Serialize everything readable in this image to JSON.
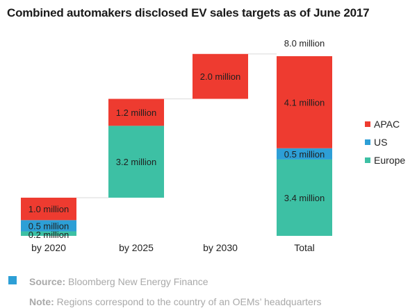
{
  "title": "Combined automakers disclosed EV sales targets as of June 2017",
  "colors": {
    "APAC": "#ee3b30",
    "US": "#2d9fd6",
    "Europe": "#3dc0a4",
    "connector": "#e0e0e0",
    "marker": "#2d9fd6"
  },
  "chart_data": {
    "type": "bar",
    "subtype": "waterfall",
    "unit": "million",
    "categories": [
      "by 2020",
      "by 2025",
      "by 2030",
      "Total"
    ],
    "series": [
      {
        "name": "Europe",
        "values": [
          0.2,
          3.2,
          0.0,
          3.4
        ]
      },
      {
        "name": "US",
        "values": [
          0.5,
          0.0,
          0.0,
          0.5
        ]
      },
      {
        "name": "APAC",
        "values": [
          1.0,
          1.2,
          2.0,
          4.1
        ]
      }
    ],
    "data_labels": [
      [
        "0.2 million",
        "3.2 million",
        "",
        "3.4 million"
      ],
      [
        "0.5 million",
        "",
        "",
        "0.5 million"
      ],
      [
        "1.0 million",
        "1.2 million",
        "2.0 million",
        "4.1 million"
      ]
    ],
    "total_label": "8.0 million",
    "legend": [
      "APAC",
      "US",
      "Europe"
    ],
    "legend_position": "right",
    "grid": false
  },
  "footer": {
    "source_label": "Source:",
    "source_text": "Bloomberg New Energy Finance",
    "note_label": "Note:",
    "note_text": "Regions correspond to the country of an OEMs’ headquarters"
  }
}
